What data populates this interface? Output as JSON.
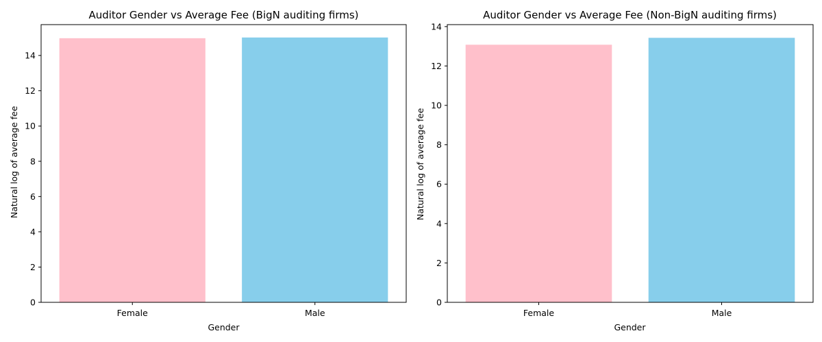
{
  "chart_data": [
    {
      "type": "bar",
      "title": "Auditor Gender vs Average Fee (BigN auditing firms)",
      "xlabel": "Gender",
      "ylabel": "Natural log of average fee",
      "categories": [
        "Female",
        "Male"
      ],
      "values": [
        14.98,
        15.02
      ],
      "colors": [
        "#ffc0cb",
        "#87ceeb"
      ],
      "ylim": [
        0,
        15.75
      ],
      "yticks": [
        0,
        2,
        4,
        6,
        8,
        10,
        12,
        14
      ],
      "grid": false
    },
    {
      "type": "bar",
      "title": "Auditor Gender vs Average Fee (Non-BigN auditing firms)",
      "xlabel": "Gender",
      "ylabel": "Natural log of average fee",
      "categories": [
        "Female",
        "Male"
      ],
      "values": [
        13.08,
        13.43
      ],
      "colors": [
        "#ffc0cb",
        "#87ceeb"
      ],
      "ylim": [
        0,
        14.1
      ],
      "yticks": [
        0,
        2,
        4,
        6,
        8,
        10,
        12,
        14
      ],
      "grid": false
    }
  ]
}
